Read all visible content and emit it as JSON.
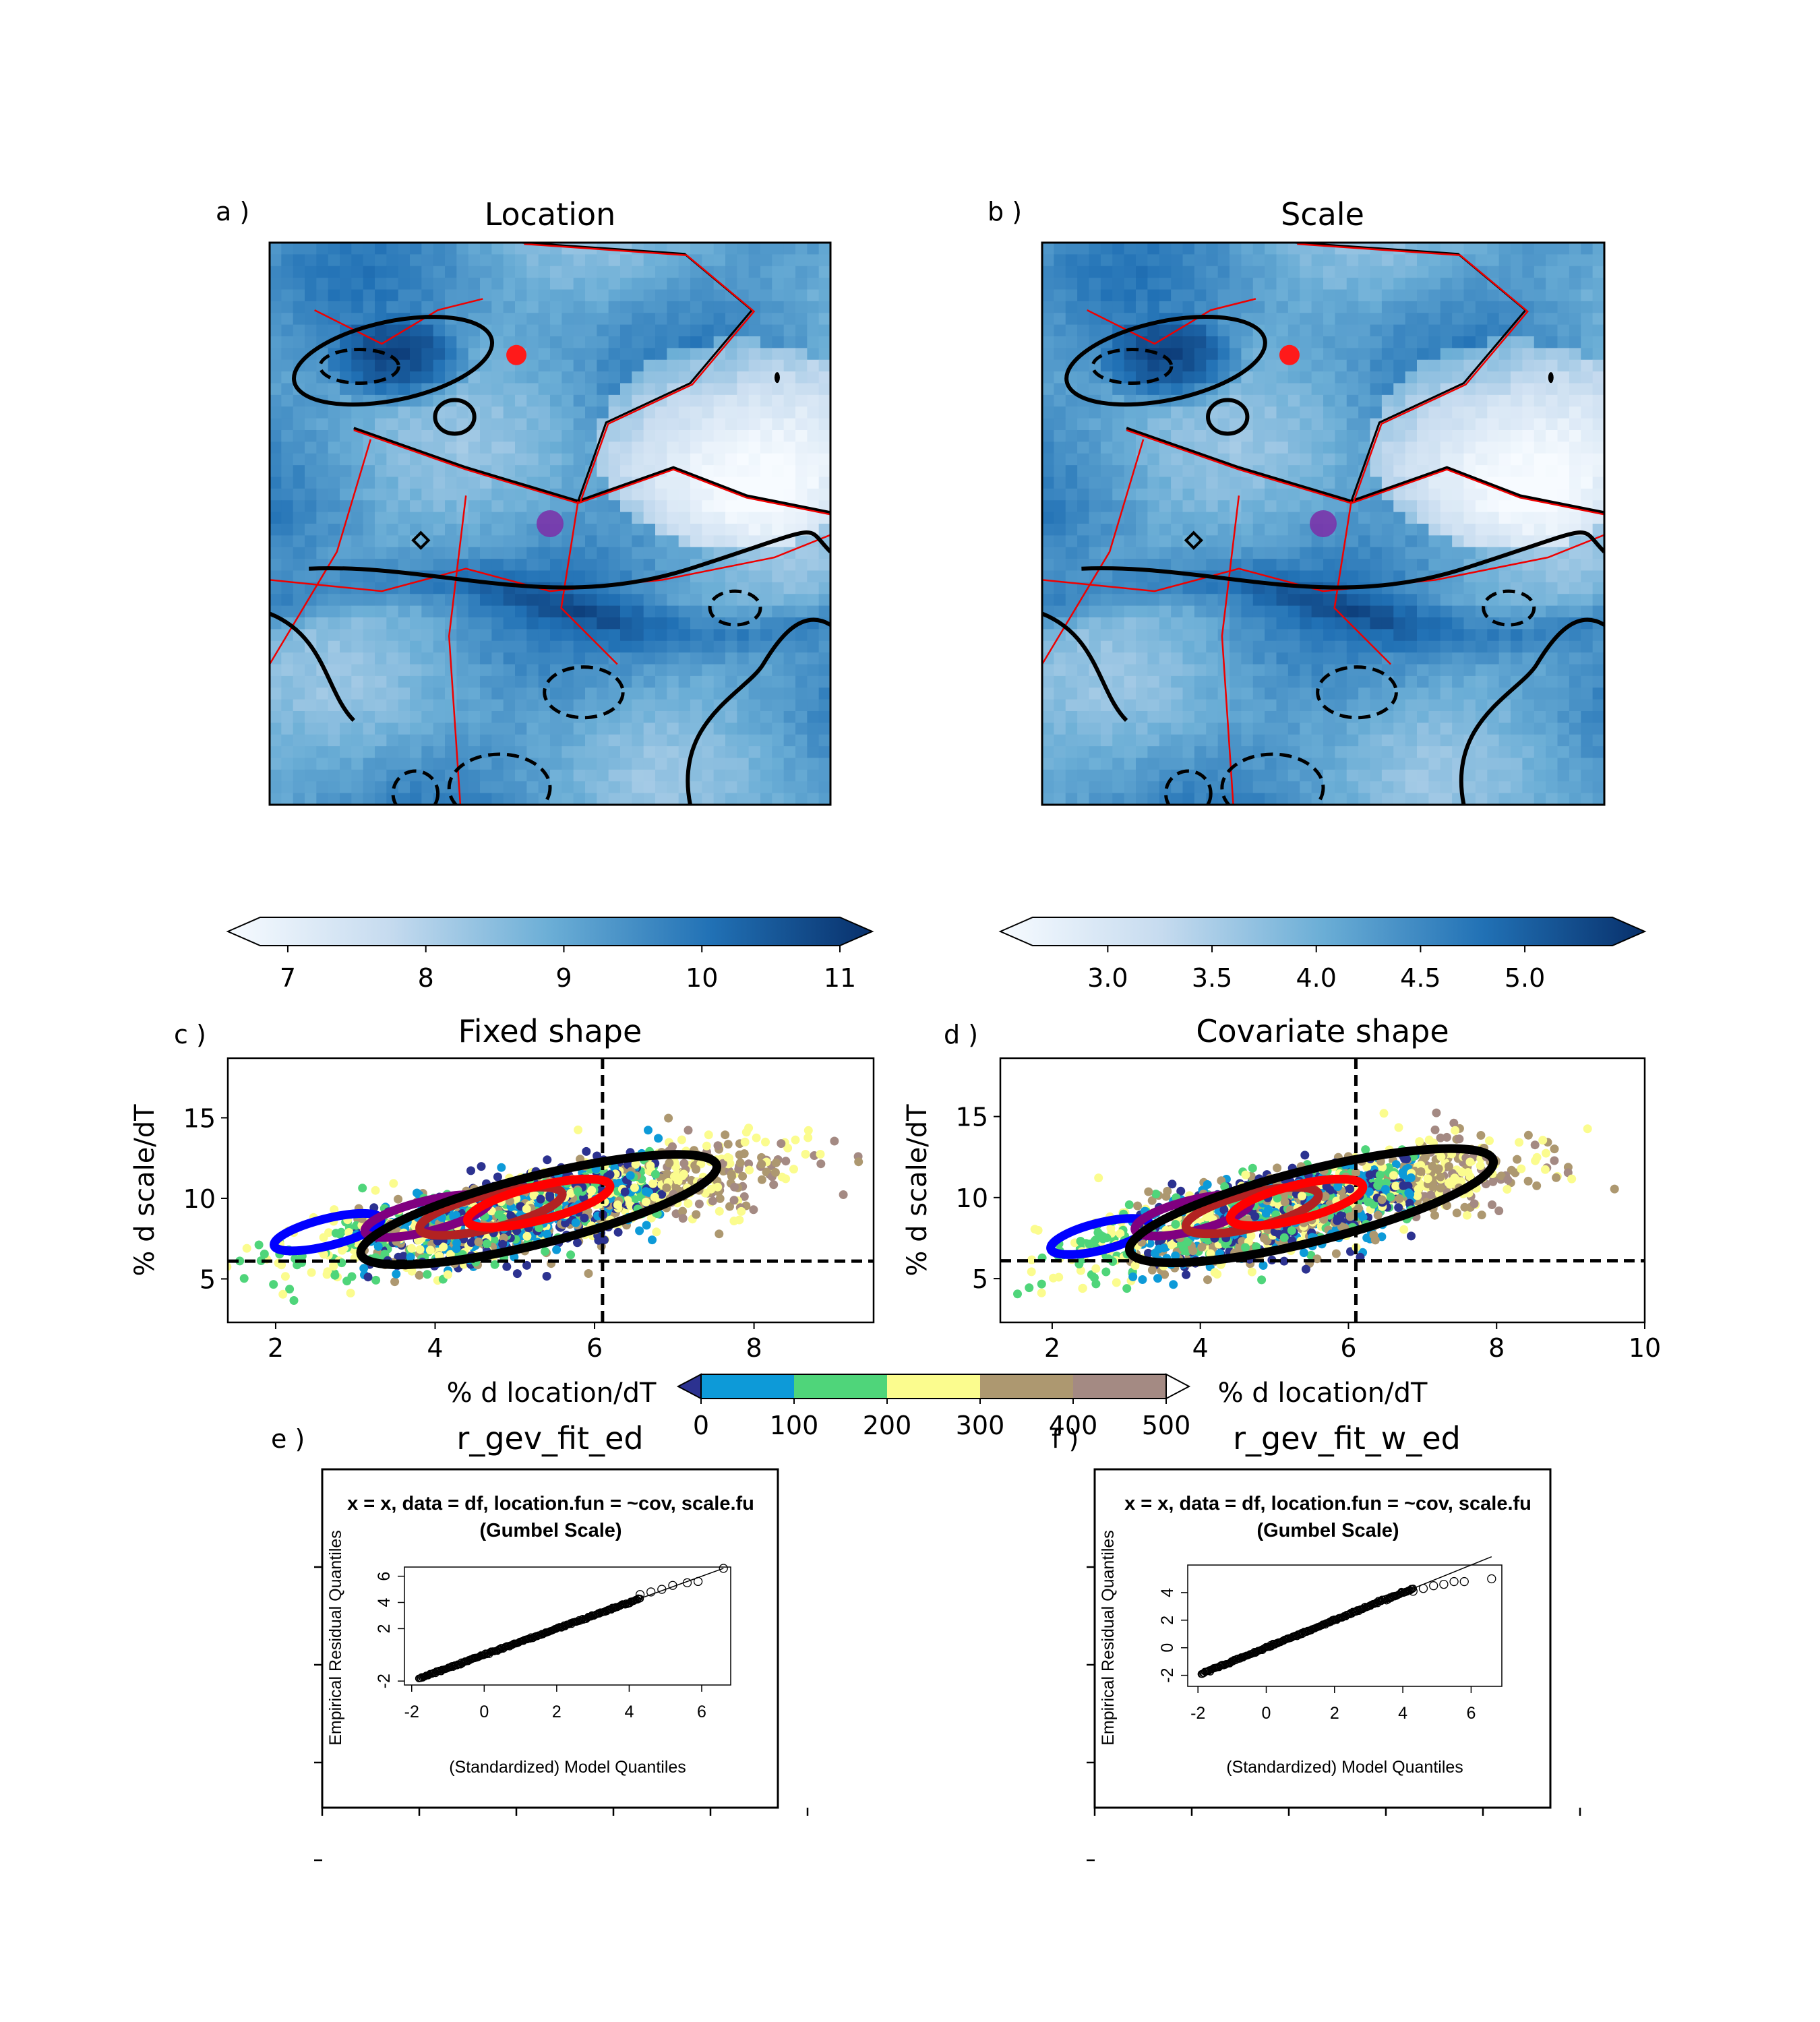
{
  "panels": {
    "a": {
      "label": "a )",
      "title": "Location"
    },
    "b": {
      "label": "b )",
      "title": "Scale"
    },
    "c": {
      "label": "c )",
      "title": "Fixed shape"
    },
    "d": {
      "label": "d )",
      "title": "Covariate shape"
    },
    "e": {
      "label": "e )",
      "title": "r_gev_fit_ed"
    },
    "f": {
      "label": "f )",
      "title": "r_gev_fit_w_ed"
    }
  },
  "colorbars": {
    "location": {
      "ticks": [
        "7",
        "8",
        "9",
        "10",
        "11"
      ],
      "values": [
        7,
        8,
        9,
        10,
        11
      ]
    },
    "scale": {
      "ticks": [
        "3.0",
        "3.5",
        "4.0",
        "4.5",
        "5.0"
      ],
      "values": [
        3.0,
        3.5,
        4.0,
        4.5,
        5.0
      ]
    },
    "elevation": {
      "ticks": [
        "0",
        "100",
        "200",
        "300",
        "400",
        "500"
      ],
      "colors": [
        "#2c3290",
        "#0d9ad8",
        "#4fd57a",
        "#fbfc8e",
        "#ad9870",
        "#a48a83"
      ]
    }
  },
  "chart_data": [
    {
      "type": "scatter",
      "panel": "c",
      "title": "Fixed shape",
      "xlabel": "% d location/dT",
      "ylabel": "% d scale/dT",
      "xlim": [
        1.4,
        9.5
      ],
      "ylim": [
        2.3,
        18.7
      ],
      "xticks": [
        "2",
        "4",
        "6",
        "8"
      ],
      "yticks": [
        "5",
        "10",
        "15"
      ],
      "reference_lines": {
        "x": 6.1,
        "y": 6.1
      },
      "ellipses": [
        {
          "color": "#0000ff",
          "center": [
            2.65,
            7.9
          ],
          "rx": 0.6,
          "ry": 0.8
        },
        {
          "color": "#800080",
          "center": [
            3.9,
            8.9
          ],
          "rx": 0.7,
          "ry": 0.9
        },
        {
          "color": "#b22222",
          "center": [
            4.7,
            9.2
          ],
          "rx": 0.8,
          "ry": 1.0
        },
        {
          "color": "#ff0000",
          "center": [
            5.3,
            9.7
          ],
          "rx": 0.8,
          "ry": 1.0
        },
        {
          "color": "#000000",
          "center": [
            5.3,
            9.3
          ],
          "rx": 2.0,
          "ry": 2.0
        }
      ]
    },
    {
      "type": "scatter",
      "panel": "d",
      "title": "Covariate shape",
      "xlabel": "% d location/dT",
      "ylabel": "% d scale/dT",
      "xlim": [
        1.3,
        10.0
      ],
      "ylim": [
        2.3,
        18.6
      ],
      "xticks": [
        "2",
        "4",
        "6",
        "8",
        "10"
      ],
      "yticks": [
        "5",
        "10",
        "15"
      ],
      "reference_lines": {
        "x": 6.1,
        "y": 6.1
      },
      "ellipses": [
        {
          "color": "#0000ff",
          "center": [
            2.65,
            7.6
          ],
          "rx": 0.6,
          "ry": 0.8
        },
        {
          "color": "#800080",
          "center": [
            3.9,
            8.9
          ],
          "rx": 0.7,
          "ry": 0.9
        },
        {
          "color": "#b22222",
          "center": [
            4.7,
            9.2
          ],
          "rx": 0.8,
          "ry": 1.0
        },
        {
          "color": "#ff0000",
          "center": [
            5.3,
            9.7
          ],
          "rx": 0.8,
          "ry": 1.0
        },
        {
          "color": "#000000",
          "center": [
            5.5,
            9.5
          ],
          "rx": 2.2,
          "ry": 2.1
        }
      ]
    },
    {
      "type": "scatter",
      "panel": "e",
      "subtitle_line1": "x = x, data = df, location.fun = ~cov, scale.fu",
      "subtitle_line2": "(Gumbel Scale)",
      "xlabel": "(Standardized) Model Quantiles",
      "ylabel": "Empirical Residual Quantiles",
      "xlim": [
        -2.2,
        6.8
      ],
      "ylim": [
        -2.3,
        6.7
      ],
      "xticks": [
        "-2",
        "0",
        "2",
        "4",
        "6"
      ],
      "yticks": [
        "-2",
        "2",
        "4",
        "6"
      ],
      "ytick_values": [
        -2,
        2,
        4,
        6
      ],
      "qq_range": [
        -1.8,
        6.6
      ],
      "tail_points": [
        [
          4.3,
          4.6
        ],
        [
          4.6,
          4.8
        ],
        [
          4.9,
          5.0
        ],
        [
          5.2,
          5.3
        ],
        [
          5.6,
          5.5
        ],
        [
          5.9,
          5.6
        ],
        [
          6.6,
          6.6
        ]
      ]
    },
    {
      "type": "scatter",
      "panel": "f",
      "subtitle_line1": "x = x, data = df, location.fun = ~cov, scale.fu",
      "subtitle_line2": "(Gumbel Scale)",
      "xlabel": "(Standardized) Model Quantiles",
      "ylabel": "Empirical Residual Quantiles",
      "xlim": [
        -2.3,
        6.9
      ],
      "ylim": [
        -2.8,
        6.0
      ],
      "xticks": [
        "-2",
        "0",
        "2",
        "4",
        "6"
      ],
      "yticks": [
        "-2",
        "0",
        "2",
        "4"
      ],
      "ytick_values": [
        -2,
        0,
        2,
        4
      ],
      "qq_range": [
        -1.9,
        6.6
      ],
      "tail_points": [
        [
          4.3,
          4.1
        ],
        [
          4.6,
          4.3
        ],
        [
          4.9,
          4.5
        ],
        [
          5.2,
          4.6
        ],
        [
          5.5,
          4.8
        ],
        [
          5.8,
          4.8
        ],
        [
          6.6,
          5.0
        ]
      ]
    }
  ]
}
